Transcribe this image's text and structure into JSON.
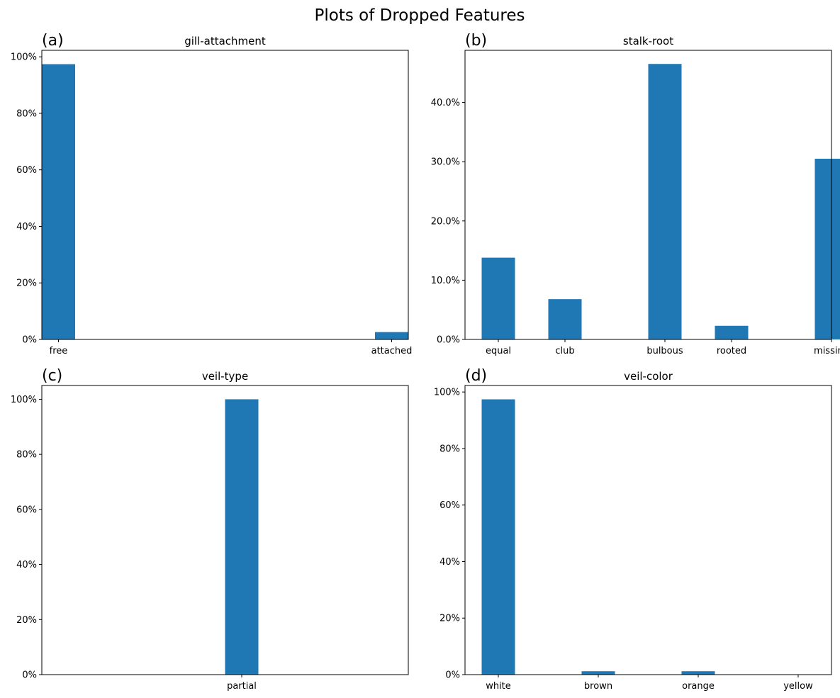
{
  "suptitle": "Plots of Dropped Features",
  "bar_color": "#1f77b4",
  "chart_data": [
    {
      "panel": "(a)",
      "type": "bar",
      "title": "gill-attachment",
      "categories": [
        "free",
        "attached"
      ],
      "bar_x": [
        0.0,
        1.0
      ],
      "values": [
        97.4,
        2.6
      ],
      "xlim": [
        -0.05,
        1.05
      ],
      "ylim": [
        0,
        102.3
      ],
      "yticks": [
        0,
        20,
        40,
        60,
        80,
        100
      ],
      "ytick_labels": [
        "0%",
        "20%",
        "40%",
        "60%",
        "80%",
        "100%"
      ],
      "bar_width_units": 0.1
    },
    {
      "panel": "(b)",
      "type": "bar",
      "title": "stalk-root",
      "categories": [
        "equal",
        "club",
        "bulbous",
        "rooted",
        "missing"
      ],
      "bar_x": [
        0.2,
        1.0,
        2.2,
        3.0,
        4.2
      ],
      "values": [
        13.8,
        6.8,
        46.5,
        2.3,
        30.5
      ],
      "xlim": [
        -0.2,
        4.2
      ],
      "ylim": [
        0,
        48.8
      ],
      "yticks": [
        0,
        10,
        20,
        30,
        40
      ],
      "ytick_labels": [
        "0.0%",
        "10.0%",
        "20.0%",
        "30.0%",
        "40.0%"
      ],
      "bar_width_units": 0.4
    },
    {
      "panel": "(c)",
      "type": "bar",
      "title": "veil-type",
      "categories": [
        "partial"
      ],
      "bar_x": [
        0.05
      ],
      "values": [
        100
      ],
      "xlim": [
        -0.55,
        0.55
      ],
      "ylim": [
        0,
        105
      ],
      "yticks": [
        0,
        20,
        40,
        60,
        80,
        100
      ],
      "ytick_labels": [
        "0%",
        "20%",
        "40%",
        "60%",
        "80%",
        "100%"
      ],
      "bar_width_units": 0.1
    },
    {
      "panel": "(d)",
      "type": "bar",
      "title": "veil-color",
      "categories": [
        "white",
        "brown",
        "orange",
        "yellow"
      ],
      "bar_x": [
        0.15,
        1.05,
        1.95,
        2.85
      ],
      "values": [
        97.4,
        1.2,
        1.2,
        0.1
      ],
      "xlim": [
        -0.15,
        3.15
      ],
      "ylim": [
        0,
        102.3
      ],
      "yticks": [
        0,
        20,
        40,
        60,
        80,
        100
      ],
      "ytick_labels": [
        "0%",
        "20%",
        "40%",
        "60%",
        "80%",
        "100%"
      ],
      "bar_width_units": 0.3
    }
  ]
}
